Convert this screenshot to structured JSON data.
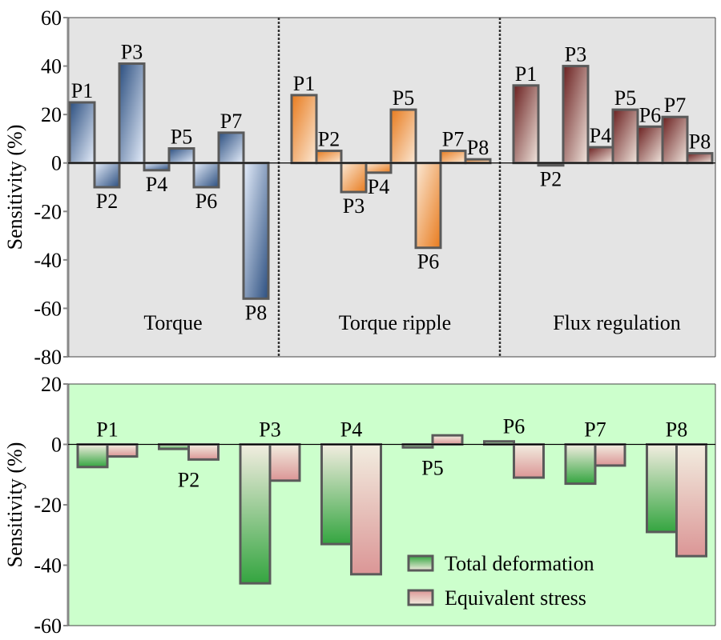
{
  "chart_data": [
    {
      "type": "bar",
      "ylabel": "Sensitivity (%)",
      "ylim": [
        -80,
        60
      ],
      "yticks": [
        60,
        40,
        20,
        0,
        -20,
        -40,
        -60,
        -80
      ],
      "categories": [
        "P1",
        "P2",
        "P3",
        "P4",
        "P5",
        "P6",
        "P7",
        "P8"
      ],
      "panels": [
        {
          "name": "Torque",
          "values": [
            25,
            -10,
            41,
            -3,
            6,
            -10,
            12.5,
            -56
          ],
          "colors": [
            "#2c4f80",
            "#e6eefb"
          ]
        },
        {
          "name": "Torque ripple",
          "values": [
            28,
            5,
            -12,
            -4,
            22,
            -35,
            5,
            1.5
          ],
          "colors": [
            "#e87b1e",
            "#fbe9d6"
          ]
        },
        {
          "name": "Flux regulation",
          "values": [
            32,
            -1,
            40,
            6.5,
            22,
            15,
            19,
            4
          ],
          "colors": [
            "#6a1f1f",
            "#f1e6de"
          ]
        }
      ],
      "background": "#e4e4e4"
    },
    {
      "type": "bar",
      "ylabel": "Sensitivity (%)",
      "ylim": [
        -60,
        20
      ],
      "yticks": [
        20,
        0,
        -20,
        -40,
        -60
      ],
      "categories": [
        "P1",
        "P2",
        "P3",
        "P4",
        "P5",
        "P6",
        "P7",
        "P8"
      ],
      "series": [
        {
          "name": "Total deformation",
          "values": [
            -7.5,
            -1.5,
            -46,
            -33,
            -1,
            1,
            -13,
            -29
          ],
          "color": "#34a540"
        },
        {
          "name": "Equivalent stress",
          "values": [
            -4,
            -5,
            -12,
            -43,
            3,
            -11,
            -7,
            -37
          ],
          "color": "#db9696"
        }
      ],
      "legend": "bottom-right",
      "background": "#ccffcc"
    }
  ]
}
